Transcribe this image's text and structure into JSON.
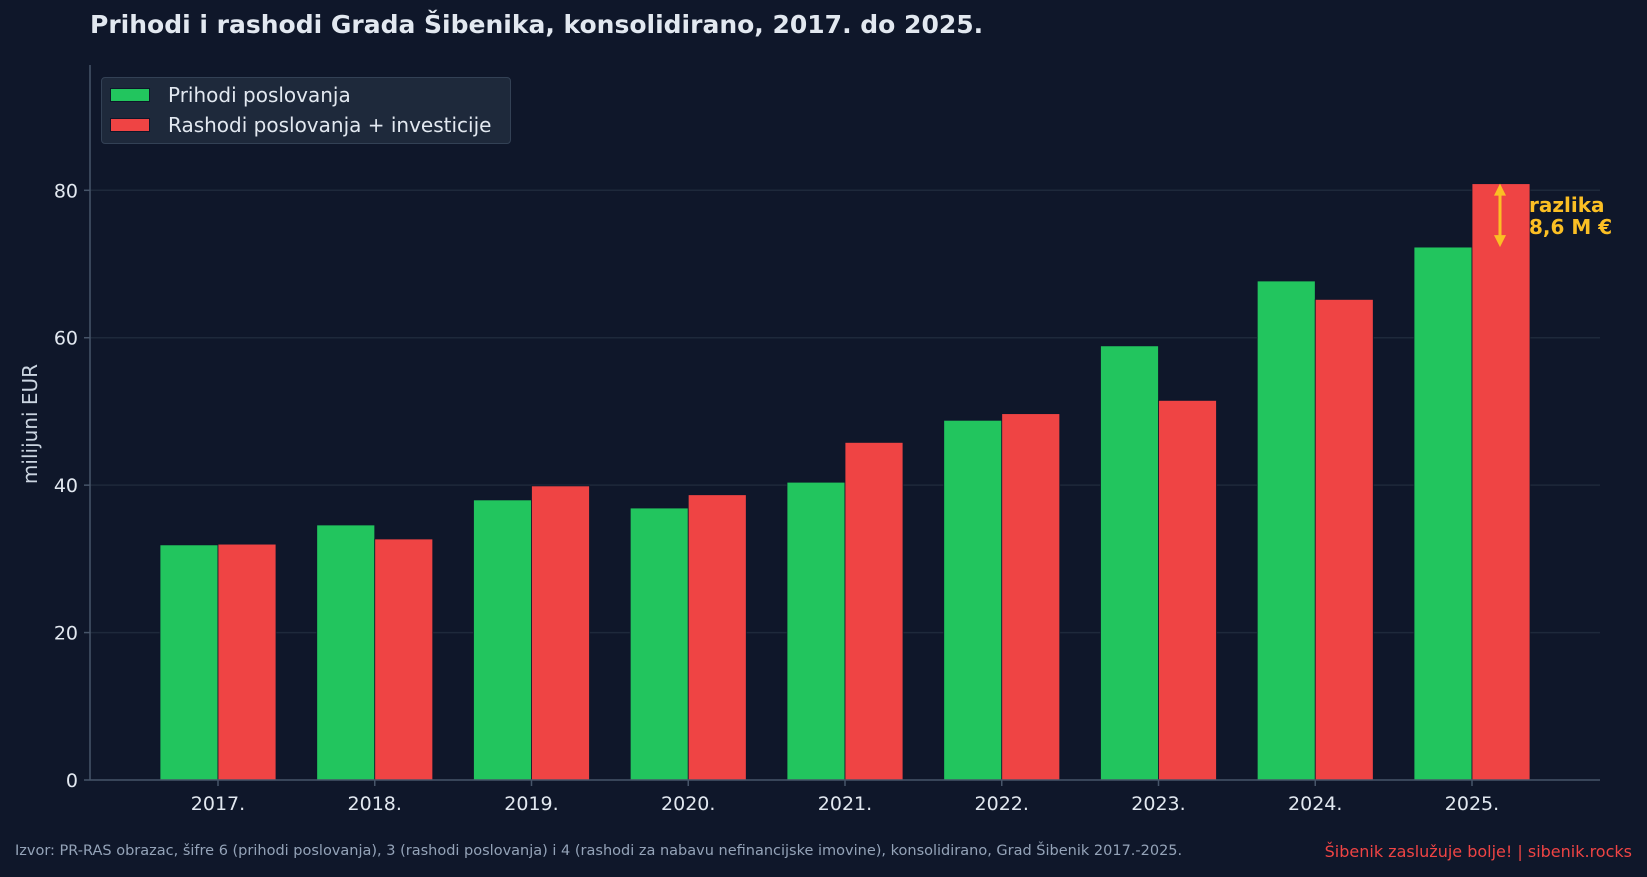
{
  "chart_data": {
    "type": "bar",
    "title": "Prihodi i rashodi Grada Šibenika, konsolidirano, 2017. do 2025.",
    "xlabel": "",
    "ylabel": "milijuni EUR",
    "ylim": [
      0,
      97
    ],
    "yticks": [
      0,
      20,
      40,
      60,
      80
    ],
    "grid": "horizontal",
    "legend_position": "top-left",
    "categories": [
      "2017.",
      "2018.",
      "2019.",
      "2020.",
      "2021.",
      "2022.",
      "2023.",
      "2024.",
      "2025."
    ],
    "series": [
      {
        "name": "Prihodi poslovanja",
        "color": "#22c55e",
        "values": [
          31.9,
          34.6,
          38.0,
          36.9,
          40.4,
          48.8,
          58.9,
          67.7,
          72.3
        ]
      },
      {
        "name": "Rashodi poslovanja + investicije",
        "color": "#ef4444",
        "values": [
          32.0,
          32.7,
          39.9,
          38.7,
          45.8,
          49.7,
          51.5,
          65.2,
          80.9
        ]
      }
    ],
    "annotation": {
      "line1": "razlika",
      "line2": "8,6 M €",
      "color": "#fbbf24"
    }
  },
  "footer": {
    "source": "Izvor: PR-RAS obrazac, šifre 6 (prihodi poslovanja), 3 (rashodi poslovanja) i 4 (rashodi za nabavu nefinancijske imovine), konsolidirano, Grad Šibenik 2017.-2025.",
    "brand": "Šibenik zaslužuje bolje!  |  sibenik.rocks"
  },
  "colors": {
    "background": "#0f172a",
    "grid": "#1e293b",
    "axis": "#475569",
    "text": "#e2e8f0"
  }
}
